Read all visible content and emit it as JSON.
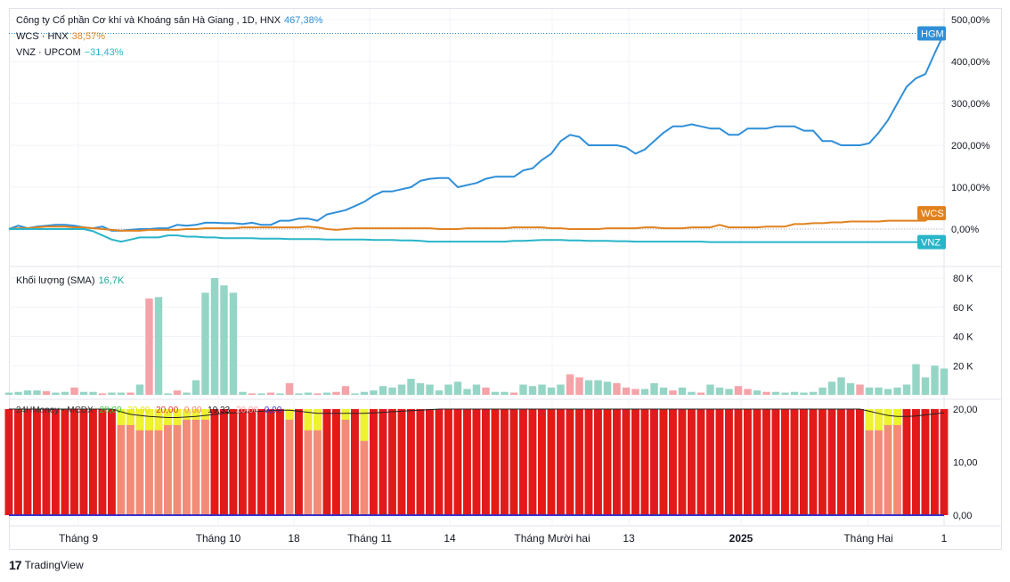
{
  "legend": {
    "main": {
      "name": "Công ty Cổ phần Cơ khí và Khoáng sản Hà Giang , 1D, HNX",
      "value": "467,38%",
      "color": "#2f8fd8"
    },
    "wcs": {
      "name": "WCS · HNX",
      "value": "38,57%",
      "color": "#e0821f"
    },
    "vnz": {
      "name": "VNZ · UPCOM",
      "value": "−31,43%",
      "color": "#29b5c9"
    },
    "volume": {
      "name": "Khối lượng (SMA)",
      "value": "16,7K",
      "color": "#26a69a"
    },
    "mcdx": {
      "name": "24HMoney - MCDX",
      "v1": "20,00",
      "v2": "20,00",
      "v3": "20,00",
      "v4": "0,00",
      "v5": "19,33",
      "v6": "20,00",
      "v7": "0,00"
    }
  },
  "price_axis": {
    "ticks": [
      "500,00%",
      "400,00%",
      "300,00%",
      "200,00%",
      "100,00%",
      "0,00%"
    ]
  },
  "volume_axis": {
    "ticks": [
      "80 K",
      "60 K",
      "40 K",
      "20 K"
    ]
  },
  "mcdx_axis": {
    "ticks": [
      "20,00",
      "10,00",
      "0,00"
    ]
  },
  "time_axis": {
    "labels": [
      "Tháng 9",
      "Tháng 10",
      "18",
      "Tháng 11",
      "14",
      "Tháng Mười hai",
      "13",
      "2025",
      "Tháng Hai",
      "1"
    ]
  },
  "branding": {
    "logo_mark": "17",
    "text": "TradingView"
  },
  "chart_data": [
    {
      "type": "line",
      "title": "Công ty Cổ phần Cơ khí và Khoáng sản Hà Giang , 1D, HNX",
      "ylim": [
        -60,
        500
      ],
      "series": [
        {
          "name": "HGM",
          "color": "#2f8fd8",
          "values": [
            0,
            8,
            2,
            6,
            8,
            10,
            10,
            8,
            4,
            2,
            6,
            -4,
            -4,
            -2,
            0,
            0,
            2,
            2,
            10,
            8,
            10,
            15,
            15,
            14,
            14,
            12,
            15,
            10,
            10,
            20,
            20,
            25,
            25,
            20,
            35,
            40,
            45,
            55,
            65,
            80,
            90,
            90,
            95,
            100,
            115,
            120,
            122,
            122,
            100,
            105,
            110,
            120,
            125,
            125,
            125,
            140,
            145,
            165,
            180,
            210,
            225,
            220,
            200,
            200,
            200,
            200,
            195,
            180,
            190,
            210,
            230,
            245,
            245,
            250,
            245,
            240,
            240,
            225,
            225,
            240,
            240,
            240,
            245,
            245,
            245,
            235,
            235,
            210,
            210,
            200,
            200,
            200,
            205,
            230,
            260,
            300,
            340,
            360,
            370,
            420,
            467
          ]
        },
        {
          "name": "WCS",
          "color": "#e0821f",
          "values": [
            0,
            2,
            2,
            4,
            6,
            6,
            6,
            4,
            4,
            2,
            0,
            -2,
            -4,
            -4,
            -4,
            -2,
            -2,
            -2,
            -2,
            0,
            0,
            2,
            2,
            2,
            2,
            4,
            4,
            4,
            4,
            4,
            4,
            4,
            6,
            4,
            0,
            -2,
            0,
            2,
            2,
            2,
            2,
            2,
            2,
            2,
            2,
            2,
            0,
            0,
            0,
            2,
            2,
            2,
            2,
            2,
            4,
            4,
            4,
            4,
            2,
            2,
            0,
            0,
            0,
            0,
            2,
            2,
            2,
            2,
            4,
            4,
            2,
            2,
            2,
            4,
            4,
            4,
            10,
            4,
            4,
            4,
            4,
            6,
            6,
            6,
            12,
            12,
            14,
            14,
            16,
            16,
            18,
            18,
            18,
            18,
            20,
            20,
            20,
            20,
            20,
            38,
            38
          ]
        },
        {
          "name": "VNZ",
          "color": "#29b5c9",
          "values": [
            0,
            0,
            0,
            0,
            0,
            0,
            0,
            0,
            0,
            -5,
            -15,
            -25,
            -30,
            -25,
            -20,
            -20,
            -20,
            -15,
            -15,
            -18,
            -18,
            -20,
            -20,
            -22,
            -22,
            -22,
            -22,
            -23,
            -23,
            -23,
            -24,
            -24,
            -24,
            -24,
            -25,
            -25,
            -25,
            -25,
            -25,
            -26,
            -26,
            -26,
            -27,
            -27,
            -28,
            -30,
            -30,
            -30,
            -30,
            -30,
            -30,
            -30,
            -30,
            -30,
            -28,
            -28,
            -27,
            -26,
            -26,
            -26,
            -27,
            -27,
            -28,
            -28,
            -28,
            -29,
            -29,
            -30,
            -30,
            -30,
            -30,
            -30,
            -30,
            -30,
            -30,
            -31,
            -31,
            -31,
            -31,
            -31,
            -31,
            -31,
            -31,
            -31,
            -31,
            -31,
            -31,
            -31,
            -31,
            -31,
            -31,
            -31,
            -31,
            -31,
            -31,
            -31,
            -31,
            -31,
            -31,
            -31,
            -31
          ]
        }
      ],
      "axis_tags": [
        "HGM",
        "WCS",
        "VNZ"
      ]
    },
    {
      "type": "bar",
      "title": "Khối lượng (SMA)",
      "ylim": [
        0,
        80000
      ],
      "values": [
        1500,
        2000,
        3000,
        3000,
        2500,
        1500,
        2000,
        5000,
        2000,
        2000,
        1000,
        1500,
        1500,
        1500,
        7000,
        66000,
        67000,
        1000,
        3000,
        1500,
        10000,
        70000,
        80000,
        75000,
        70000,
        2000,
        1000,
        1000,
        1500,
        1000,
        8000,
        1000,
        1500,
        1000,
        1500,
        2000,
        6000,
        1000,
        2000,
        3000,
        6000,
        5000,
        7000,
        11000,
        8000,
        7000,
        3000,
        7000,
        9000,
        4000,
        7000,
        5000,
        2000,
        2000,
        1500,
        7000,
        6000,
        7000,
        5000,
        7000,
        14000,
        12000,
        10000,
        10000,
        9000,
        8000,
        5000,
        4000,
        4000,
        8000,
        5000,
        3000,
        5000,
        2000,
        1500,
        7000,
        5000,
        4000,
        6000,
        4000,
        3000,
        2000,
        2000,
        1500,
        2000,
        1500,
        2000,
        5000,
        9000,
        12000,
        8000,
        7000,
        5000,
        5000,
        4000,
        5000,
        7000,
        21000,
        12000,
        20000,
        18000
      ],
      "up": [
        1,
        1,
        1,
        1,
        0,
        1,
        1,
        0,
        1,
        1,
        0,
        1,
        1,
        0,
        1,
        0,
        1,
        1,
        0,
        1,
        1,
        1,
        1,
        1,
        1,
        1,
        0,
        1,
        0,
        1,
        0,
        1,
        1,
        0,
        1,
        0,
        0,
        1,
        1,
        1,
        1,
        1,
        1,
        1,
        1,
        1,
        1,
        1,
        1,
        1,
        1,
        0,
        1,
        1,
        0,
        1,
        1,
        1,
        1,
        1,
        0,
        0,
        1,
        1,
        1,
        0,
        0,
        0,
        1,
        1,
        1,
        0,
        1,
        1,
        0,
        1,
        1,
        1,
        0,
        0,
        1,
        0,
        1,
        1,
        1,
        1,
        1,
        1,
        1,
        1,
        1,
        0,
        1,
        1,
        1,
        1,
        1,
        1,
        1,
        1,
        1
      ],
      "color_up": "#95d5c6",
      "color_down": "#f4a3a8"
    },
    {
      "type": "bar",
      "title": "24HMoney - MCDX",
      "ylim": [
        0,
        20
      ],
      "red": [
        20,
        20,
        20,
        20,
        20,
        20,
        20,
        20,
        20,
        20,
        20,
        20,
        20,
        20,
        20,
        20,
        20,
        20,
        20,
        20,
        20,
        20,
        20,
        20,
        20,
        20,
        20,
        20,
        20,
        20,
        20,
        20,
        20,
        20,
        20,
        20,
        20,
        20,
        20,
        20,
        20,
        20,
        20,
        20,
        20,
        20,
        20,
        20,
        20,
        20,
        20,
        20,
        20,
        20,
        20,
        20,
        20,
        20,
        20,
        20,
        20,
        20,
        20,
        20,
        20,
        20,
        20,
        20,
        20,
        20,
        20,
        20,
        20,
        20,
        20,
        20,
        20,
        20,
        20,
        20,
        20,
        20,
        20,
        20,
        20,
        20,
        20,
        20,
        20,
        20,
        20,
        20,
        20,
        20,
        20,
        20,
        20,
        20,
        20,
        20,
        20
      ],
      "salmon": [
        20,
        20,
        20,
        20,
        20,
        20,
        20,
        20,
        20,
        20,
        20,
        20,
        17,
        16,
        16,
        16,
        16,
        17,
        17,
        18,
        18,
        18,
        20,
        20,
        20,
        20,
        20,
        20,
        20,
        20,
        18,
        20,
        16,
        16,
        20,
        20,
        18,
        20,
        14,
        20,
        20,
        20,
        20,
        20,
        20,
        20,
        20,
        20,
        20,
        20,
        20,
        20,
        20,
        20,
        20,
        20,
        20,
        20,
        20,
        20,
        20,
        20,
        20,
        20,
        20,
        20,
        20,
        20,
        20,
        20,
        20,
        20,
        20,
        20,
        20,
        20,
        20,
        20,
        20,
        20,
        20,
        20,
        20,
        20,
        20,
        20,
        20,
        20,
        20,
        20,
        20,
        20,
        16,
        16,
        17,
        17,
        20,
        20,
        20,
        20,
        20
      ],
      "yellow_top": [
        0,
        0,
        0,
        0,
        0,
        0,
        0,
        0,
        0,
        0,
        0,
        0,
        3,
        3,
        4,
        4,
        4,
        3,
        3,
        2,
        2,
        2,
        0,
        0,
        0,
        0,
        0,
        0,
        0,
        0,
        2,
        0,
        4,
        4,
        0,
        0,
        2,
        0,
        6,
        0,
        0,
        0,
        0,
        0,
        0,
        0,
        0,
        0,
        0,
        0,
        0,
        0,
        0,
        0,
        0,
        0,
        0,
        0,
        0,
        0,
        0,
        0,
        0,
        0,
        0,
        0,
        0,
        0,
        0,
        0,
        0,
        0,
        0,
        0,
        0,
        0,
        0,
        0,
        0,
        0,
        0,
        0,
        0,
        0,
        0,
        0,
        0,
        0,
        0,
        0,
        0,
        0,
        4,
        4,
        3,
        3,
        0,
        0,
        0,
        0,
        0
      ],
      "ma": [
        20,
        20,
        20,
        20,
        20,
        20,
        20,
        20,
        20,
        20,
        20,
        20,
        19.5,
        19,
        18.8,
        18.6,
        18.5,
        18.4,
        18.4,
        18.5,
        18.6,
        18.8,
        19,
        19.2,
        19.3,
        19.4,
        19.5,
        19.6,
        19.7,
        19.8,
        19.8,
        19.6,
        19.4,
        19.2,
        19.2,
        19.2,
        19.2,
        19.2,
        19.2,
        19.3,
        19.4,
        19.5,
        19.6,
        19.7,
        19.8,
        19.9,
        20,
        20,
        20,
        20,
        20,
        20,
        20,
        20,
        20,
        20,
        20,
        20,
        20,
        20,
        20,
        20,
        20,
        20,
        20,
        20,
        20,
        20,
        20,
        20,
        20,
        20,
        20,
        20,
        20,
        20,
        20,
        20,
        20,
        20,
        20,
        20,
        20,
        20,
        20,
        20,
        20,
        20,
        20,
        20,
        20,
        20,
        19.6,
        19.2,
        18.8,
        18.6,
        18.6,
        18.7,
        18.9,
        19.1,
        19.33
      ]
    }
  ]
}
